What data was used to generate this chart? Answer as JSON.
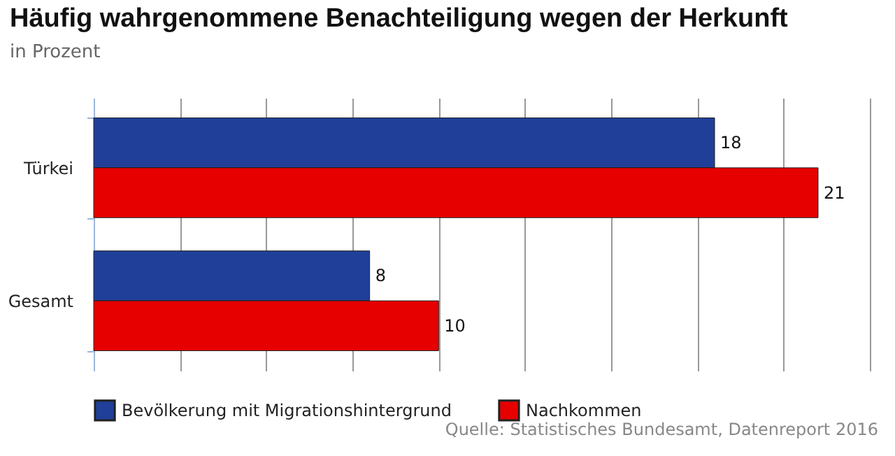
{
  "chart_data": {
    "type": "bar",
    "orientation": "horizontal",
    "title": "Häufig wahrgenommene Benachteiligung wegen der Herkunft",
    "subtitle": "in Prozent",
    "categories": [
      "Türkei",
      "Gesamt"
    ],
    "series": [
      {
        "name": "Bevölkerung mit Migrationshintergrund",
        "color": "#1f3f99",
        "values": [
          18,
          8
        ]
      },
      {
        "name": "Nachkommen",
        "color": "#e60000",
        "values": [
          21,
          10
        ]
      }
    ],
    "xlim": [
      0,
      22.5
    ],
    "xticks": [
      {
        "value": 2.5,
        "label": null
      },
      {
        "value": 5,
        "label": null
      },
      {
        "value": 7.5,
        "label": null
      },
      {
        "value": 10,
        "label": null
      },
      {
        "value": 12.5,
        "label": null
      },
      {
        "value": 15,
        "label": null
      },
      {
        "value": 17.5,
        "label": null
      },
      {
        "value": 20,
        "label": null
      },
      {
        "value": 22.5,
        "label": null
      }
    ],
    "tick_labels": "y",
    "grid": "x",
    "legend": "bottom",
    "data_labels": true,
    "annotations": [
      "Quelle: Statistisches Bundesamt, Datenreport 2016"
    ]
  }
}
